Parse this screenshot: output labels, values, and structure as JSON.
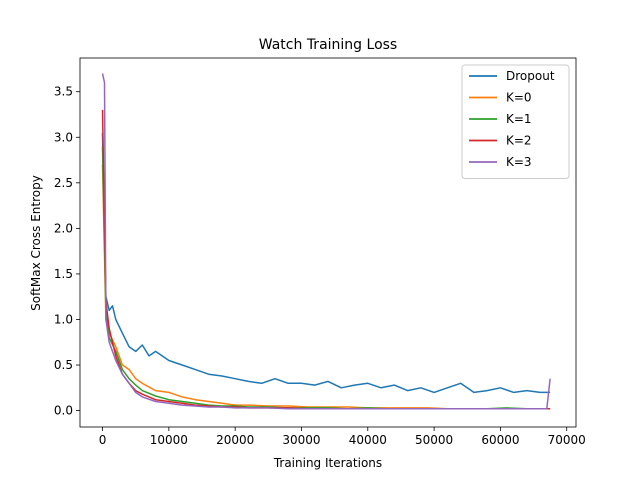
{
  "chart_data": {
    "type": "line",
    "title": "Watch Training Loss",
    "xlabel": "Training Iterations",
    "ylabel": "SoftMax Cross Entropy",
    "xlim": [
      -3400,
      71400
    ],
    "ylim": [
      -0.18,
      3.87
    ],
    "xticks": [
      0,
      10000,
      20000,
      30000,
      40000,
      50000,
      60000,
      70000
    ],
    "yticks": [
      0.0,
      0.5,
      1.0,
      1.5,
      2.0,
      2.5,
      3.0,
      3.5
    ],
    "xtick_labels": [
      "0",
      "10000",
      "20000",
      "30000",
      "40000",
      "50000",
      "60000",
      "70000"
    ],
    "ytick_labels": [
      "0.0",
      "0.5",
      "1.0",
      "1.5",
      "2.0",
      "2.5",
      "3.0",
      "3.5"
    ],
    "grid": false,
    "legend_position": "top-right",
    "series": [
      {
        "name": "Dropout",
        "color": "#1f77b4",
        "x": [
          0,
          500,
          1000,
          1500,
          2000,
          3000,
          4000,
          5000,
          6000,
          7000,
          8000,
          10000,
          12000,
          14000,
          16000,
          18000,
          20000,
          22000,
          24000,
          26000,
          28000,
          30000,
          32000,
          34000,
          36000,
          38000,
          40000,
          42000,
          44000,
          46000,
          48000,
          50000,
          52000,
          54000,
          56000,
          58000,
          60000,
          62000,
          64000,
          66000,
          67500
        ],
        "y": [
          3.05,
          1.25,
          1.1,
          1.15,
          1.0,
          0.85,
          0.7,
          0.65,
          0.72,
          0.6,
          0.65,
          0.55,
          0.5,
          0.45,
          0.4,
          0.38,
          0.35,
          0.32,
          0.3,
          0.35,
          0.3,
          0.3,
          0.28,
          0.32,
          0.25,
          0.28,
          0.3,
          0.25,
          0.28,
          0.22,
          0.25,
          0.2,
          0.25,
          0.3,
          0.2,
          0.22,
          0.25,
          0.2,
          0.22,
          0.2,
          0.2
        ]
      },
      {
        "name": "K=0",
        "color": "#ff7f0e",
        "x": [
          0,
          500,
          1000,
          2000,
          3000,
          4000,
          5000,
          6000,
          8000,
          10000,
          12000,
          14000,
          16000,
          18000,
          20000,
          22000,
          25000,
          28000,
          31000,
          34000,
          37000,
          40000,
          43000,
          46000,
          49000,
          52000,
          55000,
          58000,
          61000,
          64000,
          67500
        ],
        "y": [
          2.7,
          1.0,
          0.85,
          0.7,
          0.5,
          0.45,
          0.35,
          0.3,
          0.22,
          0.2,
          0.15,
          0.12,
          0.1,
          0.08,
          0.06,
          0.06,
          0.05,
          0.05,
          0.04,
          0.04,
          0.04,
          0.03,
          0.03,
          0.03,
          0.03,
          0.02,
          0.02,
          0.02,
          0.02,
          0.02,
          0.02
        ]
      },
      {
        "name": "K=1",
        "color": "#2ca02c",
        "x": [
          0,
          500,
          1000,
          2000,
          3000,
          4000,
          5000,
          6000,
          8000,
          10000,
          12000,
          14000,
          16000,
          18000,
          20000,
          22000,
          25000,
          28000,
          31000,
          34000,
          37000,
          40000,
          43000,
          46000,
          49000,
          52000,
          55000,
          58000,
          61000,
          64000,
          67500
        ],
        "y": [
          2.9,
          1.1,
          0.8,
          0.65,
          0.45,
          0.35,
          0.28,
          0.22,
          0.16,
          0.12,
          0.1,
          0.08,
          0.06,
          0.05,
          0.05,
          0.04,
          0.04,
          0.03,
          0.03,
          0.03,
          0.02,
          0.03,
          0.02,
          0.02,
          0.02,
          0.02,
          0.02,
          0.02,
          0.03,
          0.02,
          0.02
        ]
      },
      {
        "name": "K=2",
        "color": "#d62728",
        "x": [
          0,
          500,
          1000,
          2000,
          3000,
          4000,
          5000,
          6000,
          8000,
          10000,
          12000,
          14000,
          16000,
          18000,
          20000,
          22000,
          25000,
          28000,
          31000,
          34000,
          37000,
          40000,
          43000,
          46000,
          49000,
          52000,
          55000,
          58000,
          61000,
          64000,
          67500
        ],
        "y": [
          3.3,
          1.2,
          0.9,
          0.6,
          0.4,
          0.3,
          0.22,
          0.18,
          0.12,
          0.1,
          0.08,
          0.06,
          0.05,
          0.04,
          0.04,
          0.03,
          0.03,
          0.03,
          0.02,
          0.02,
          0.02,
          0.02,
          0.02,
          0.02,
          0.02,
          0.02,
          0.02,
          0.02,
          0.02,
          0.02,
          0.02
        ]
      },
      {
        "name": "K=3",
        "color": "#9467bd",
        "x": [
          0,
          300,
          500,
          1000,
          2000,
          3000,
          4000,
          5000,
          6000,
          8000,
          10000,
          12000,
          14000,
          16000,
          18000,
          20000,
          22000,
          25000,
          28000,
          31000,
          34000,
          37000,
          40000,
          43000,
          46000,
          49000,
          52000,
          55000,
          58000,
          61000,
          64000,
          67000,
          67500
        ],
        "y": [
          3.7,
          3.6,
          1.0,
          0.75,
          0.55,
          0.4,
          0.3,
          0.2,
          0.15,
          0.1,
          0.08,
          0.06,
          0.05,
          0.04,
          0.04,
          0.03,
          0.03,
          0.03,
          0.02,
          0.02,
          0.02,
          0.02,
          0.02,
          0.02,
          0.02,
          0.02,
          0.02,
          0.02,
          0.02,
          0.02,
          0.02,
          0.02,
          0.35
        ]
      }
    ]
  }
}
